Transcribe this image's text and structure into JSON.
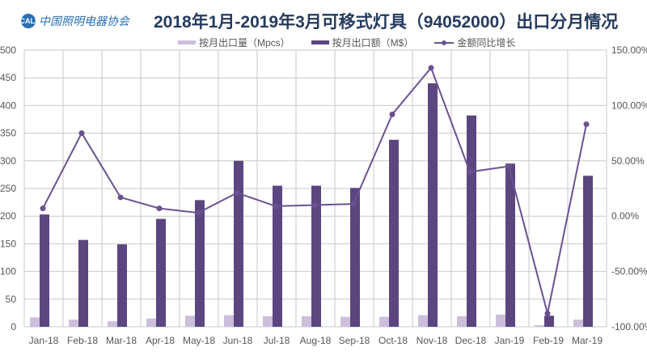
{
  "header": {
    "logo_text": "中国照明电器协会",
    "logo_mark": "CALI",
    "title": "2018年1月-2019年3月可移式灯具（94052000）出口分月情况"
  },
  "colors": {
    "volume": "#cbbfdc",
    "value": "#5c4680",
    "growth": "#6a5290",
    "grid": "#c8c8c8"
  },
  "chart_data": {
    "type": "bar",
    "title": "2018年1月-2019年3月可移式灯具（94052000）出口分月情况",
    "categories": [
      "Jan-18",
      "Feb-18",
      "Mar-18",
      "Apr-18",
      "May-18",
      "Jun-18",
      "Jul-18",
      "Aug-18",
      "Sep-18",
      "Oct-18",
      "Nov-18",
      "Dec-18",
      "Jan-19",
      "Feb-19",
      "Mar-19"
    ],
    "series": [
      {
        "name": "按月出口量（Mpcs）",
        "type": "bar",
        "axis": "left",
        "values": [
          17,
          13,
          10,
          15,
          20,
          21,
          19,
          19,
          18,
          18,
          21,
          19,
          22,
          3,
          13
        ]
      },
      {
        "name": "按月出口额（M$）",
        "type": "bar",
        "axis": "left",
        "values": [
          203,
          157,
          149,
          195,
          229,
          300,
          255,
          255,
          251,
          338,
          440,
          382,
          295,
          20,
          273
        ]
      },
      {
        "name": "金额同比增长",
        "type": "line",
        "axis": "right",
        "unit": "%",
        "values": [
          7,
          75,
          17,
          7,
          3,
          21,
          9,
          10,
          11,
          92,
          134,
          40,
          45,
          -88,
          83
        ]
      }
    ],
    "ylim": [
      0,
      500
    ],
    "y_ticks": [
      "0",
      "50",
      "100",
      "150",
      "200",
      "250",
      "300",
      "350",
      "400",
      "450",
      "500"
    ],
    "y2lim": [
      -100,
      150
    ],
    "y2_ticks": [
      "-100.00%",
      "-50.00%",
      "0.00%",
      "50.00%",
      "100.00%",
      "150.00%"
    ],
    "grid": true,
    "legend_position": "top"
  }
}
